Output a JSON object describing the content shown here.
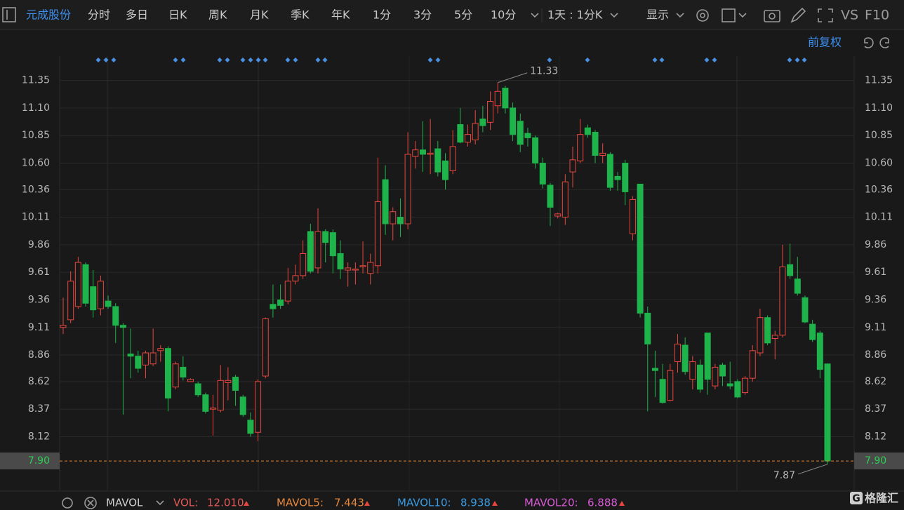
{
  "toolbar": {
    "stock": "元成股份",
    "tabs": [
      "分时",
      "多日",
      "日K",
      "周K",
      "月K",
      "季K",
      "年K",
      "1分",
      "3分",
      "5分",
      "10分"
    ],
    "period": "1天 : 1分K",
    "display": "显示",
    "vs": "VS",
    "f10": "F10"
  },
  "adjust": "前复权",
  "indicator_bar": {
    "name": "MAVOL",
    "items": [
      {
        "label": "VOL:",
        "value": "12.010",
        "color": "#e45a5a"
      },
      {
        "label": "MAVOL5:",
        "value": "7.443",
        "color": "#e8873a"
      },
      {
        "label": "MAVOL10:",
        "value": "8.938",
        "color": "#3a9be2"
      },
      {
        "label": "MAVOL20:",
        "value": "6.888",
        "color": "#d95ad6"
      }
    ]
  },
  "watermark": "格隆汇",
  "chart_data": {
    "type": "candlestick",
    "open": [
      9.11,
      9.18,
      9.3,
      9.68,
      9.48,
      9.28,
      9.35,
      9.3,
      9.13,
      8.87,
      8.85,
      8.77,
      8.78,
      8.9,
      8.92,
      8.57,
      8.75,
      8.62,
      8.6,
      8.5,
      8.37,
      8.36,
      8.61,
      8.66,
      8.48,
      8.27,
      8.16,
      8.67,
      9.32,
      9.36,
      9.35,
      9.53,
      9.58,
      9.98,
      9.65,
      9.98,
      9.97,
      9.78,
      9.63,
      9.64,
      9.66,
      9.6,
      9.67,
      10.45,
      10.05,
      10.11,
      10.05,
      10.66,
      10.72,
      10.68,
      10.73,
      10.62,
      10.53,
      10.95,
      10.79,
      10.81,
      11.0,
      10.97,
      11.12,
      11.28,
      11.1,
      10.98,
      10.87,
      10.83,
      10.6,
      10.4,
      10.12,
      10.11,
      10.52,
      10.62,
      10.92,
      10.88,
      10.67,
      10.68,
      10.48,
      10.6,
      9.96,
      10.41,
      9.24,
      8.74,
      8.64,
      8.45,
      8.8,
      8.95,
      8.64,
      8.77,
      9.06,
      8.58,
      8.77,
      8.6,
      8.62,
      8.52,
      8.65,
      8.88,
      9.2,
      9.01,
      9.04,
      9.68,
      9.55,
      9.38,
      9.14,
      9.06,
      8.78
    ],
    "high": [
      9.38,
      9.62,
      9.75,
      9.7,
      9.63,
      9.58,
      9.4,
      9.33,
      9.15,
      9.1,
      8.9,
      8.9,
      9.1,
      8.95,
      8.94,
      8.8,
      8.85,
      8.65,
      8.62,
      8.52,
      8.5,
      8.77,
      8.75,
      8.68,
      8.5,
      8.34,
      8.64,
      9.2,
      9.5,
      9.5,
      9.65,
      9.68,
      9.9,
      10.05,
      10.19,
      10.0,
      10.0,
      9.9,
      9.7,
      9.7,
      9.89,
      9.78,
      10.65,
      10.58,
      10.2,
      10.28,
      10.88,
      10.8,
      10.98,
      11.0,
      10.8,
      10.69,
      10.9,
      11.1,
      10.95,
      11.08,
      11.12,
      11.25,
      11.33,
      11.3,
      11.15,
      11.05,
      10.92,
      10.85,
      10.65,
      10.42,
      10.15,
      10.5,
      10.75,
      11.0,
      10.95,
      10.9,
      10.78,
      10.7,
      10.52,
      10.63,
      10.3,
      10.41,
      9.3,
      8.9,
      8.78,
      8.78,
      9.05,
      9.02,
      8.85,
      8.82,
      9.06,
      8.78,
      8.79,
      8.8,
      8.64,
      8.67,
      8.95,
      9.28,
      9.22,
      9.08,
      9.86,
      9.87,
      9.75,
      9.4,
      9.18,
      9.08,
      8.78
    ],
    "low": [
      9.05,
      9.15,
      9.28,
      9.3,
      9.2,
      9.22,
      9.28,
      8.97,
      8.32,
      8.65,
      8.7,
      8.65,
      8.76,
      8.8,
      8.35,
      8.55,
      8.63,
      8.62,
      8.48,
      8.33,
      8.13,
      8.34,
      8.45,
      8.4,
      8.3,
      8.12,
      8.08,
      8.65,
      9.2,
      9.28,
      9.32,
      9.5,
      9.55,
      9.6,
      9.6,
      9.7,
      9.6,
      9.55,
      9.48,
      9.5,
      9.6,
      9.5,
      9.6,
      9.95,
      9.9,
      9.93,
      10.0,
      10.55,
      10.52,
      10.5,
      10.48,
      10.36,
      10.5,
      10.78,
      10.75,
      10.77,
      10.88,
      10.9,
      11.05,
      11.05,
      10.8,
      10.7,
      10.75,
      10.55,
      10.37,
      10.03,
      10.1,
      10.04,
      10.38,
      10.6,
      10.83,
      10.6,
      10.6,
      10.35,
      10.35,
      10.22,
      9.9,
      9.2,
      8.35,
      8.48,
      8.42,
      8.44,
      8.7,
      8.68,
      8.55,
      8.52,
      8.5,
      8.55,
      8.58,
      8.55,
      8.47,
      8.5,
      8.62,
      8.85,
      8.95,
      8.82,
      9.02,
      9.55,
      9.4,
      9.15,
      8.98,
      8.65,
      7.87
    ],
    "close": [
      9.13,
      9.53,
      9.7,
      9.33,
      9.27,
      9.53,
      9.3,
      9.13,
      9.11,
      8.85,
      8.74,
      8.88,
      8.88,
      8.92,
      8.47,
      8.78,
      8.66,
      8.64,
      8.5,
      8.35,
      8.38,
      8.63,
      8.63,
      8.54,
      8.32,
      8.15,
      8.62,
      9.19,
      9.28,
      9.31,
      9.53,
      9.58,
      9.78,
      9.62,
      9.98,
      9.88,
      9.76,
      9.64,
      9.65,
      9.64,
      9.67,
      9.7,
      10.25,
      10.05,
      10.16,
      10.05,
      10.68,
      10.72,
      10.68,
      10.69,
      10.52,
      10.45,
      10.75,
      10.79,
      10.86,
      10.96,
      10.94,
      11.16,
      11.25,
      11.1,
      10.86,
      10.77,
      10.83,
      10.6,
      10.41,
      10.2,
      10.14,
      10.43,
      10.63,
      10.86,
      10.86,
      10.67,
      10.69,
      10.38,
      10.45,
      10.34,
      10.27,
      9.24,
      8.96,
      8.72,
      8.43,
      8.72,
      8.96,
      8.71,
      8.8,
      8.55,
      8.64,
      8.75,
      8.67,
      8.58,
      8.48,
      8.65,
      8.9,
      9.2,
      8.97,
      9.04,
      9.66,
      9.58,
      9.42,
      9.16,
      9.0,
      8.73,
      7.9
    ],
    "up_color": "#e8473f",
    "down_color": "#1fb34b",
    "ylim": [
      7.64,
      11.57
    ],
    "yticks": [
      11.35,
      {
        "value": 11.1,
        "label": "11.10"
      },
      10.85,
      {
        "value": 10.6,
        "label": "10.60"
      },
      10.36,
      10.11,
      9.86,
      9.61,
      9.36,
      9.11,
      8.86,
      8.62,
      8.37,
      8.12
    ],
    "grid": true,
    "last_price": {
      "value": 7.9,
      "label": "7.90"
    }
  }
}
